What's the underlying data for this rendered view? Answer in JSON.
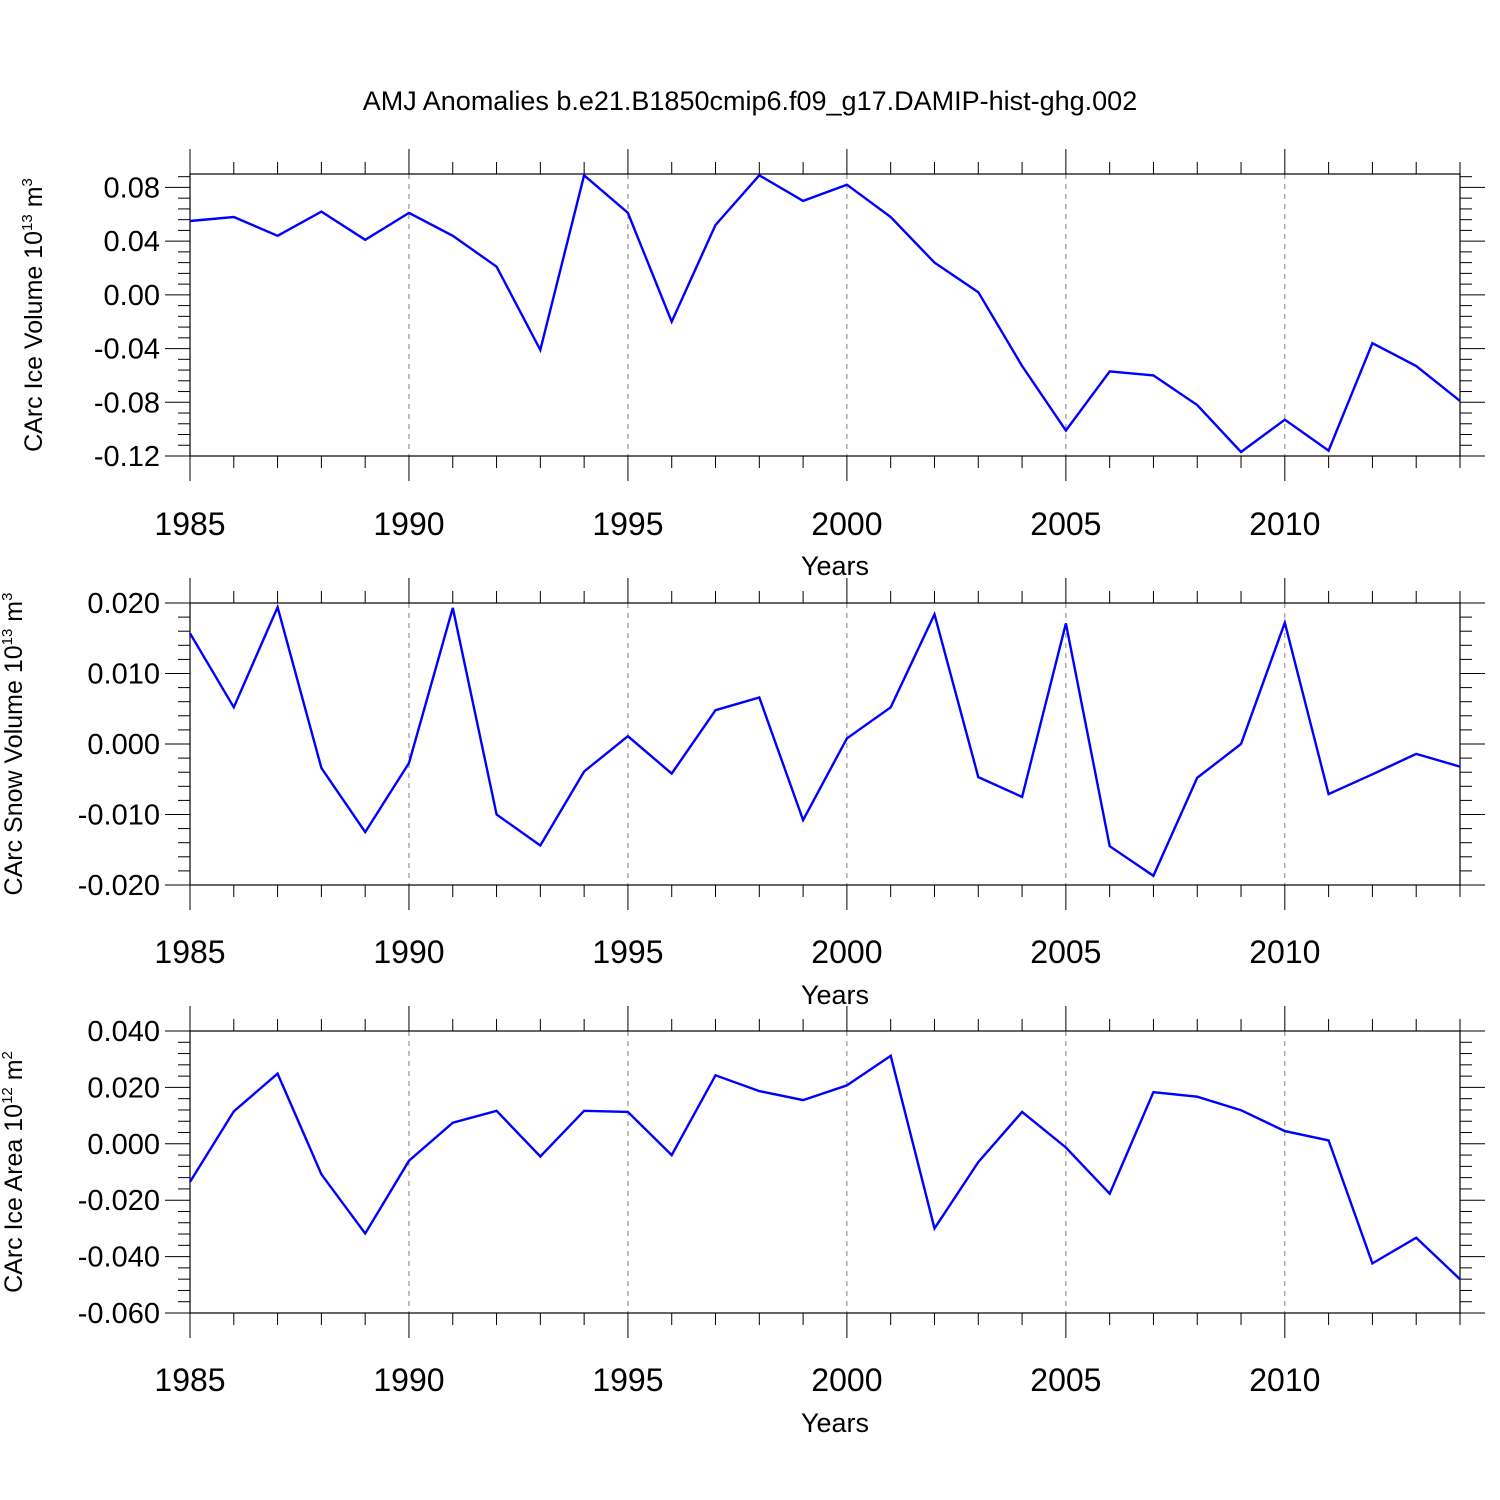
{
  "title": "AMJ Anomalies b.e21.B1850cmip6.f09_g17.DAMIP-hist-ghg.002",
  "colors": {
    "series": "#0000ff",
    "axis": "#000000",
    "grid": "#808080",
    "background": "#ffffff"
  },
  "chart_data": [
    {
      "type": "line",
      "name": "ice-volume",
      "ylabel_main": "CArc Ice Volume 10",
      "ylabel_exp": "13",
      "ylabel_unit": " m",
      "ylabel_unit_exp": "3",
      "xlabel": "Years",
      "xlim": [
        1985,
        2014
      ],
      "ylim": [
        -0.12,
        0.09
      ],
      "yticks": [
        0.08,
        0.04,
        0.0,
        -0.04,
        -0.08,
        -0.12
      ],
      "ytick_labels": [
        "0.08",
        "0.04",
        "0.00",
        "-0.04",
        "-0.08",
        "-0.12"
      ],
      "xticks": [
        1985,
        1990,
        1995,
        2000,
        2005,
        2010
      ],
      "xtick_labels": [
        "1985",
        "1990",
        "1995",
        "2000",
        "2005",
        "2010"
      ],
      "grid": "vertical-dashed",
      "x": [
        1985,
        1986,
        1987,
        1988,
        1989,
        1990,
        1991,
        1992,
        1993,
        1994,
        1995,
        1996,
        1997,
        1998,
        1999,
        2000,
        2001,
        2002,
        2003,
        2004,
        2005,
        2006,
        2007,
        2008,
        2009,
        2010,
        2011,
        2012,
        2013,
        2014
      ],
      "values": [
        0.055,
        0.058,
        0.044,
        0.062,
        0.041,
        0.061,
        0.044,
        0.021,
        -0.041,
        0.089,
        0.061,
        -0.02,
        0.052,
        0.089,
        0.07,
        0.082,
        0.058,
        0.024,
        0.002,
        -0.053,
        -0.101,
        -0.057,
        -0.06,
        -0.082,
        -0.117,
        -0.093,
        -0.116,
        -0.036,
        -0.053,
        -0.079
      ]
    },
    {
      "type": "line",
      "name": "snow-volume",
      "ylabel_main": "CArc Snow Volume 10",
      "ylabel_exp": "13",
      "ylabel_unit": " m",
      "ylabel_unit_exp": "3",
      "xlabel": "Years",
      "xlim": [
        1985,
        2014
      ],
      "ylim": [
        -0.02,
        0.02
      ],
      "yticks": [
        0.02,
        0.01,
        0.0,
        -0.01,
        -0.02
      ],
      "ytick_labels": [
        "0.020",
        "0.010",
        "0.000",
        "-0.010",
        "-0.020"
      ],
      "xticks": [
        1985,
        1990,
        1995,
        2000,
        2005,
        2010
      ],
      "xtick_labels": [
        "1985",
        "1990",
        "1995",
        "2000",
        "2005",
        "2010"
      ],
      "grid": "vertical-dashed",
      "x": [
        1985,
        1986,
        1987,
        1988,
        1989,
        1990,
        1991,
        1992,
        1993,
        1994,
        1995,
        1996,
        1997,
        1998,
        1999,
        2000,
        2001,
        2002,
        2003,
        2004,
        2005,
        2006,
        2007,
        2008,
        2009,
        2010,
        2011,
        2012,
        2013,
        2014
      ],
      "values": [
        0.0157,
        0.0052,
        0.0194,
        -0.0034,
        -0.0125,
        -0.0027,
        0.0193,
        -0.01,
        -0.0144,
        -0.0039,
        0.0011,
        -0.0042,
        0.0048,
        0.0066,
        -0.0108,
        0.0008,
        0.0052,
        0.0184,
        -0.0047,
        -0.0075,
        0.0171,
        -0.0145,
        -0.0187,
        -0.0048,
        0.0,
        0.0172,
        -0.0071,
        -0.0043,
        -0.0014,
        -0.0032
      ]
    },
    {
      "type": "line",
      "name": "ice-area",
      "ylabel_main": "CArc Ice Area 10",
      "ylabel_exp": "12",
      "ylabel_unit": " m",
      "ylabel_unit_exp": "2",
      "xlabel": "Years",
      "xlim": [
        1985,
        2014
      ],
      "ylim": [
        -0.06,
        0.04
      ],
      "yticks": [
        0.04,
        0.02,
        0.0,
        -0.02,
        -0.04,
        -0.06
      ],
      "ytick_labels": [
        "0.040",
        "0.020",
        "0.000",
        "-0.020",
        "-0.040",
        "-0.060"
      ],
      "xticks": [
        1985,
        1990,
        1995,
        2000,
        2005,
        2010
      ],
      "xtick_labels": [
        "1985",
        "1990",
        "1995",
        "2000",
        "2005",
        "2010"
      ],
      "grid": "vertical-dashed",
      "x": [
        1985,
        1986,
        1987,
        1988,
        1989,
        1990,
        1991,
        1992,
        1993,
        1994,
        1995,
        1996,
        1997,
        1998,
        1999,
        2000,
        2001,
        2002,
        2003,
        2004,
        2005,
        2006,
        2007,
        2008,
        2009,
        2010,
        2011,
        2012,
        2013,
        2014
      ],
      "values": [
        -0.0135,
        0.0115,
        0.0249,
        -0.0108,
        -0.0318,
        -0.006,
        0.0075,
        0.0117,
        -0.0045,
        0.0117,
        0.0113,
        -0.004,
        0.0243,
        0.0187,
        0.0155,
        0.0207,
        0.0312,
        -0.03,
        -0.0065,
        0.0113,
        -0.0013,
        -0.0177,
        0.0183,
        0.0167,
        0.0119,
        0.0045,
        0.0012,
        -0.0424,
        -0.0333,
        -0.048
      ]
    }
  ]
}
